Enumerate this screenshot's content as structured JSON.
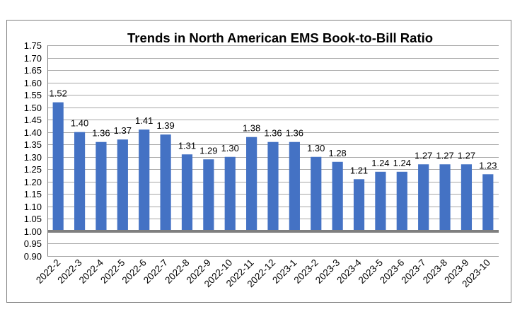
{
  "chart_data": {
    "type": "bar",
    "title": "Trends in North American EMS Book-to-Bill Ratio",
    "xlabel": "",
    "ylabel": "",
    "categories": [
      "2022-2",
      "2022-3",
      "2022-4",
      "2022-5",
      "2022-6",
      "2022-7",
      "2022-8",
      "2022-9",
      "2022-10",
      "2022-11",
      "2022-12",
      "2023-1",
      "2023-2",
      "2023-3",
      "2023-4",
      "2023-5",
      "2023-6",
      "2023-7",
      "2023-8",
      "2023-9",
      "2023-10"
    ],
    "values": [
      1.52,
      1.4,
      1.36,
      1.37,
      1.41,
      1.39,
      1.31,
      1.29,
      1.3,
      1.38,
      1.36,
      1.36,
      1.3,
      1.28,
      1.21,
      1.24,
      1.24,
      1.27,
      1.27,
      1.27,
      1.23
    ],
    "data_labels": [
      "1.52",
      "1.40",
      "1.36",
      "1.37",
      "1.41",
      "1.39",
      "1.31",
      "1.29",
      "1.30",
      "1.38",
      "1.36",
      "1.36",
      "1.30",
      "1.28",
      "1.21",
      "1.24",
      "1.24",
      "1.27",
      "1.27",
      "1.27",
      "1.23"
    ],
    "ylim": [
      0.9,
      1.75
    ],
    "y_ticks": [
      0.9,
      0.95,
      1.0,
      1.05,
      1.1,
      1.15,
      1.2,
      1.25,
      1.3,
      1.35,
      1.4,
      1.45,
      1.5,
      1.55,
      1.6,
      1.65,
      1.7,
      1.75
    ],
    "y_tick_labels": [
      "0.90",
      "0.95",
      "1.00",
      "1.05",
      "1.10",
      "1.15",
      "1.20",
      "1.25",
      "1.30",
      "1.35",
      "1.40",
      "1.45",
      "1.50",
      "1.55",
      "1.60",
      "1.65",
      "1.70",
      "1.75"
    ],
    "baseline": 1.0,
    "grid": true,
    "legend": "none",
    "colors": {
      "bar": "#4472c4",
      "baseline": "#7f7f7f",
      "grid": "#a6a6a6",
      "axis": "#808080",
      "text": "#000000"
    }
  }
}
